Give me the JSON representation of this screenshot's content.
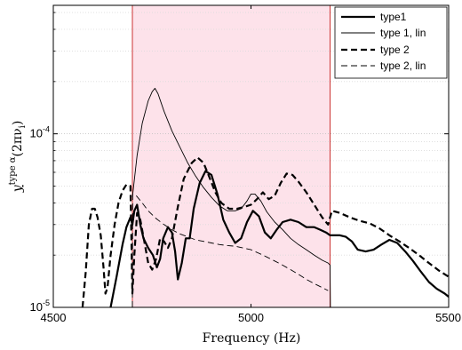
{
  "chart_data": {
    "type": "line",
    "title": "",
    "xlabel": "Frequency (Hz)",
    "ylabel": "y^{type α}(2πν_i)",
    "ylabel_parts": {
      "base": "y",
      "sup": "type α",
      "paren_open": "(2πν",
      "sub": "i",
      "paren_close": ")"
    },
    "xlim": [
      4500,
      5500
    ],
    "ylim": [
      1e-05,
      0.00055
    ],
    "yscale": "log",
    "grid": "y-minor-dotted",
    "legend_position": "top-right",
    "x_ticks": [
      {
        "value": 4500,
        "label": "4500"
      },
      {
        "value": 5000,
        "label": "5000"
      },
      {
        "value": 5500,
        "label": "5500"
      }
    ],
    "y_ticks": [
      {
        "value": 1e-05,
        "mantissa": "10",
        "exponent": "-5"
      },
      {
        "value": 0.0001,
        "mantissa": "10",
        "exponent": "-4"
      }
    ],
    "highlight_band": {
      "x_start": 4700,
      "x_end": 5200,
      "fill": "#fde2ea",
      "edge": "#cc3333"
    },
    "series": [
      {
        "name": "type1",
        "style": "solid-thick",
        "points": [
          [
            4645,
            1e-05
          ],
          [
            4660,
            1.5e-05
          ],
          [
            4675,
            2.3e-05
          ],
          [
            4685,
            2.9e-05
          ],
          [
            4695,
            3.3e-05
          ],
          [
            4700,
            3e-05
          ],
          [
            4705,
            3.6e-05
          ],
          [
            4712,
            3.9e-05
          ],
          [
            4720,
            3e-05
          ],
          [
            4728,
            2.5e-05
          ],
          [
            4740,
            2.2e-05
          ],
          [
            4752,
            2e-05
          ],
          [
            4762,
            1.7e-05
          ],
          [
            4770,
            1.9e-05
          ],
          [
            4778,
            2.5e-05
          ],
          [
            4790,
            2.9e-05
          ],
          [
            4800,
            2.7e-05
          ],
          [
            4808,
            2.1e-05
          ],
          [
            4815,
            1.45e-05
          ],
          [
            4825,
            1.8e-05
          ],
          [
            4835,
            2.5e-05
          ],
          [
            4845,
            2.5e-05
          ],
          [
            4855,
            3.7e-05
          ],
          [
            4870,
            5.2e-05
          ],
          [
            4885,
            6.1e-05
          ],
          [
            4900,
            5.8e-05
          ],
          [
            4915,
            4.5e-05
          ],
          [
            4930,
            3.2e-05
          ],
          [
            4945,
            2.7e-05
          ],
          [
            4960,
            2.35e-05
          ],
          [
            4975,
            2.5e-05
          ],
          [
            4990,
            3.1e-05
          ],
          [
            5005,
            3.6e-05
          ],
          [
            5020,
            3.35e-05
          ],
          [
            5035,
            2.7e-05
          ],
          [
            5050,
            2.5e-05
          ],
          [
            5065,
            2.8e-05
          ],
          [
            5080,
            3.1e-05
          ],
          [
            5100,
            3.2e-05
          ],
          [
            5120,
            3.1e-05
          ],
          [
            5140,
            2.9e-05
          ],
          [
            5160,
            2.9e-05
          ],
          [
            5175,
            2.8e-05
          ],
          [
            5190,
            2.7e-05
          ],
          [
            5200,
            2.6e-05
          ],
          [
            5210,
            2.6e-05
          ],
          [
            5225,
            2.6e-05
          ],
          [
            5240,
            2.55e-05
          ],
          [
            5255,
            2.4e-05
          ],
          [
            5270,
            2.15e-05
          ],
          [
            5290,
            2.1e-05
          ],
          [
            5310,
            2.15e-05
          ],
          [
            5330,
            2.3e-05
          ],
          [
            5350,
            2.45e-05
          ],
          [
            5370,
            2.35e-05
          ],
          [
            5390,
            2.1e-05
          ],
          [
            5410,
            1.85e-05
          ],
          [
            5430,
            1.6e-05
          ],
          [
            5450,
            1.4e-05
          ],
          [
            5470,
            1.28e-05
          ],
          [
            5490,
            1.2e-05
          ],
          [
            5500,
            1.15e-05
          ]
        ]
      },
      {
        "name": "type 1, lin",
        "style": "solid-thin",
        "points": [
          [
            4700,
            4.3e-05
          ],
          [
            4712,
            7.5e-05
          ],
          [
            4725,
            0.000115
          ],
          [
            4740,
            0.000155
          ],
          [
            4750,
            0.000175
          ],
          [
            4757,
            0.000183
          ],
          [
            4765,
            0.00017
          ],
          [
            4780,
            0.000135
          ],
          [
            4800,
            0.000104
          ],
          [
            4820,
            8.4e-05
          ],
          [
            4840,
            6.8e-05
          ],
          [
            4860,
            5.7e-05
          ],
          [
            4880,
            4.9e-05
          ],
          [
            4900,
            4.3e-05
          ],
          [
            4920,
            3.85e-05
          ],
          [
            4940,
            3.6e-05
          ],
          [
            4960,
            3.6e-05
          ],
          [
            4975,
            3.7e-05
          ],
          [
            4990,
            4.1e-05
          ],
          [
            5000,
            4.5e-05
          ],
          [
            5010,
            4.5e-05
          ],
          [
            5025,
            4.1e-05
          ],
          [
            5040,
            3.55e-05
          ],
          [
            5060,
            3.1e-05
          ],
          [
            5080,
            2.8e-05
          ],
          [
            5100,
            2.5e-05
          ],
          [
            5120,
            2.3e-05
          ],
          [
            5140,
            2.15e-05
          ],
          [
            5160,
            2e-05
          ],
          [
            5180,
            1.87e-05
          ],
          [
            5195,
            1.8e-05
          ],
          [
            5200,
            1.75e-05
          ],
          [
            5201,
            1e-05
          ]
        ]
      },
      {
        "name": "type 2",
        "style": "dashed-thick",
        "points": [
          [
            4574,
            1e-05
          ],
          [
            4582,
            1.6e-05
          ],
          [
            4590,
            3e-05
          ],
          [
            4598,
            3.7e-05
          ],
          [
            4605,
            3.7e-05
          ],
          [
            4612,
            3.3e-05
          ],
          [
            4620,
            2.6e-05
          ],
          [
            4627,
            1.7e-05
          ],
          [
            4632,
            1.2e-05
          ],
          [
            4637,
            1.3e-05
          ],
          [
            4645,
            2e-05
          ],
          [
            4655,
            3e-05
          ],
          [
            4665,
            4e-05
          ],
          [
            4675,
            4.7e-05
          ],
          [
            4685,
            5.1e-05
          ],
          [
            4695,
            5e-05
          ],
          [
            4700,
            1.2e-05
          ],
          [
            4705,
            2e-05
          ],
          [
            4712,
            3.5e-05
          ],
          [
            4720,
            3.2e-05
          ],
          [
            4730,
            2.4e-05
          ],
          [
            4740,
            1.8e-05
          ],
          [
            4750,
            1.65e-05
          ],
          [
            4760,
            1.9e-05
          ],
          [
            4770,
            2.5e-05
          ],
          [
            4780,
            2.4e-05
          ],
          [
            4790,
            2.2e-05
          ],
          [
            4800,
            2.5e-05
          ],
          [
            4815,
            3.8e-05
          ],
          [
            4830,
            5.5e-05
          ],
          [
            4850,
            6.8e-05
          ],
          [
            4865,
            7.3e-05
          ],
          [
            4880,
            6.8e-05
          ],
          [
            4895,
            5.6e-05
          ],
          [
            4910,
            4.6e-05
          ],
          [
            4925,
            4e-05
          ],
          [
            4945,
            3.7e-05
          ],
          [
            4965,
            3.7e-05
          ],
          [
            4985,
            3.8e-05
          ],
          [
            5000,
            3.9e-05
          ],
          [
            5015,
            4.2e-05
          ],
          [
            5030,
            4.6e-05
          ],
          [
            5045,
            4.2e-05
          ],
          [
            5060,
            4.4e-05
          ],
          [
            5075,
            5.2e-05
          ],
          [
            5090,
            5.9e-05
          ],
          [
            5105,
            5.8e-05
          ],
          [
            5120,
            5.3e-05
          ],
          [
            5140,
            4.6e-05
          ],
          [
            5160,
            3.9e-05
          ],
          [
            5180,
            3.3e-05
          ],
          [
            5195,
            3e-05
          ],
          [
            5200,
            3.3e-05
          ],
          [
            5205,
            3.6e-05
          ],
          [
            5225,
            3.5e-05
          ],
          [
            5250,
            3.3e-05
          ],
          [
            5275,
            3.15e-05
          ],
          [
            5300,
            3.05e-05
          ],
          [
            5325,
            2.85e-05
          ],
          [
            5350,
            2.6e-05
          ],
          [
            5375,
            2.4e-05
          ],
          [
            5400,
            2.2e-05
          ],
          [
            5425,
            2e-05
          ],
          [
            5450,
            1.8e-05
          ],
          [
            5475,
            1.63e-05
          ],
          [
            5500,
            1.5e-05
          ]
        ]
      },
      {
        "name": "type 2, lin",
        "style": "dashed-thin",
        "points": [
          [
            4700,
            1e-05
          ],
          [
            4701,
            4.5e-05
          ],
          [
            4710,
            4.4e-05
          ],
          [
            4725,
            4e-05
          ],
          [
            4740,
            3.6e-05
          ],
          [
            4760,
            3.25e-05
          ],
          [
            4780,
            3e-05
          ],
          [
            4800,
            2.8e-05
          ],
          [
            4820,
            2.65e-05
          ],
          [
            4840,
            2.55e-05
          ],
          [
            4860,
            2.45e-05
          ],
          [
            4880,
            2.4e-05
          ],
          [
            4900,
            2.35e-05
          ],
          [
            4920,
            2.3e-05
          ],
          [
            4940,
            2.27e-05
          ],
          [
            4960,
            2.25e-05
          ],
          [
            4980,
            2.2e-05
          ],
          [
            5000,
            2.15e-05
          ],
          [
            5020,
            2.05e-05
          ],
          [
            5040,
            1.95e-05
          ],
          [
            5060,
            1.85e-05
          ],
          [
            5080,
            1.75e-05
          ],
          [
            5100,
            1.65e-05
          ],
          [
            5120,
            1.55e-05
          ],
          [
            5140,
            1.45e-05
          ],
          [
            5160,
            1.37e-05
          ],
          [
            5180,
            1.3e-05
          ],
          [
            5195,
            1.25e-05
          ]
        ]
      }
    ]
  }
}
